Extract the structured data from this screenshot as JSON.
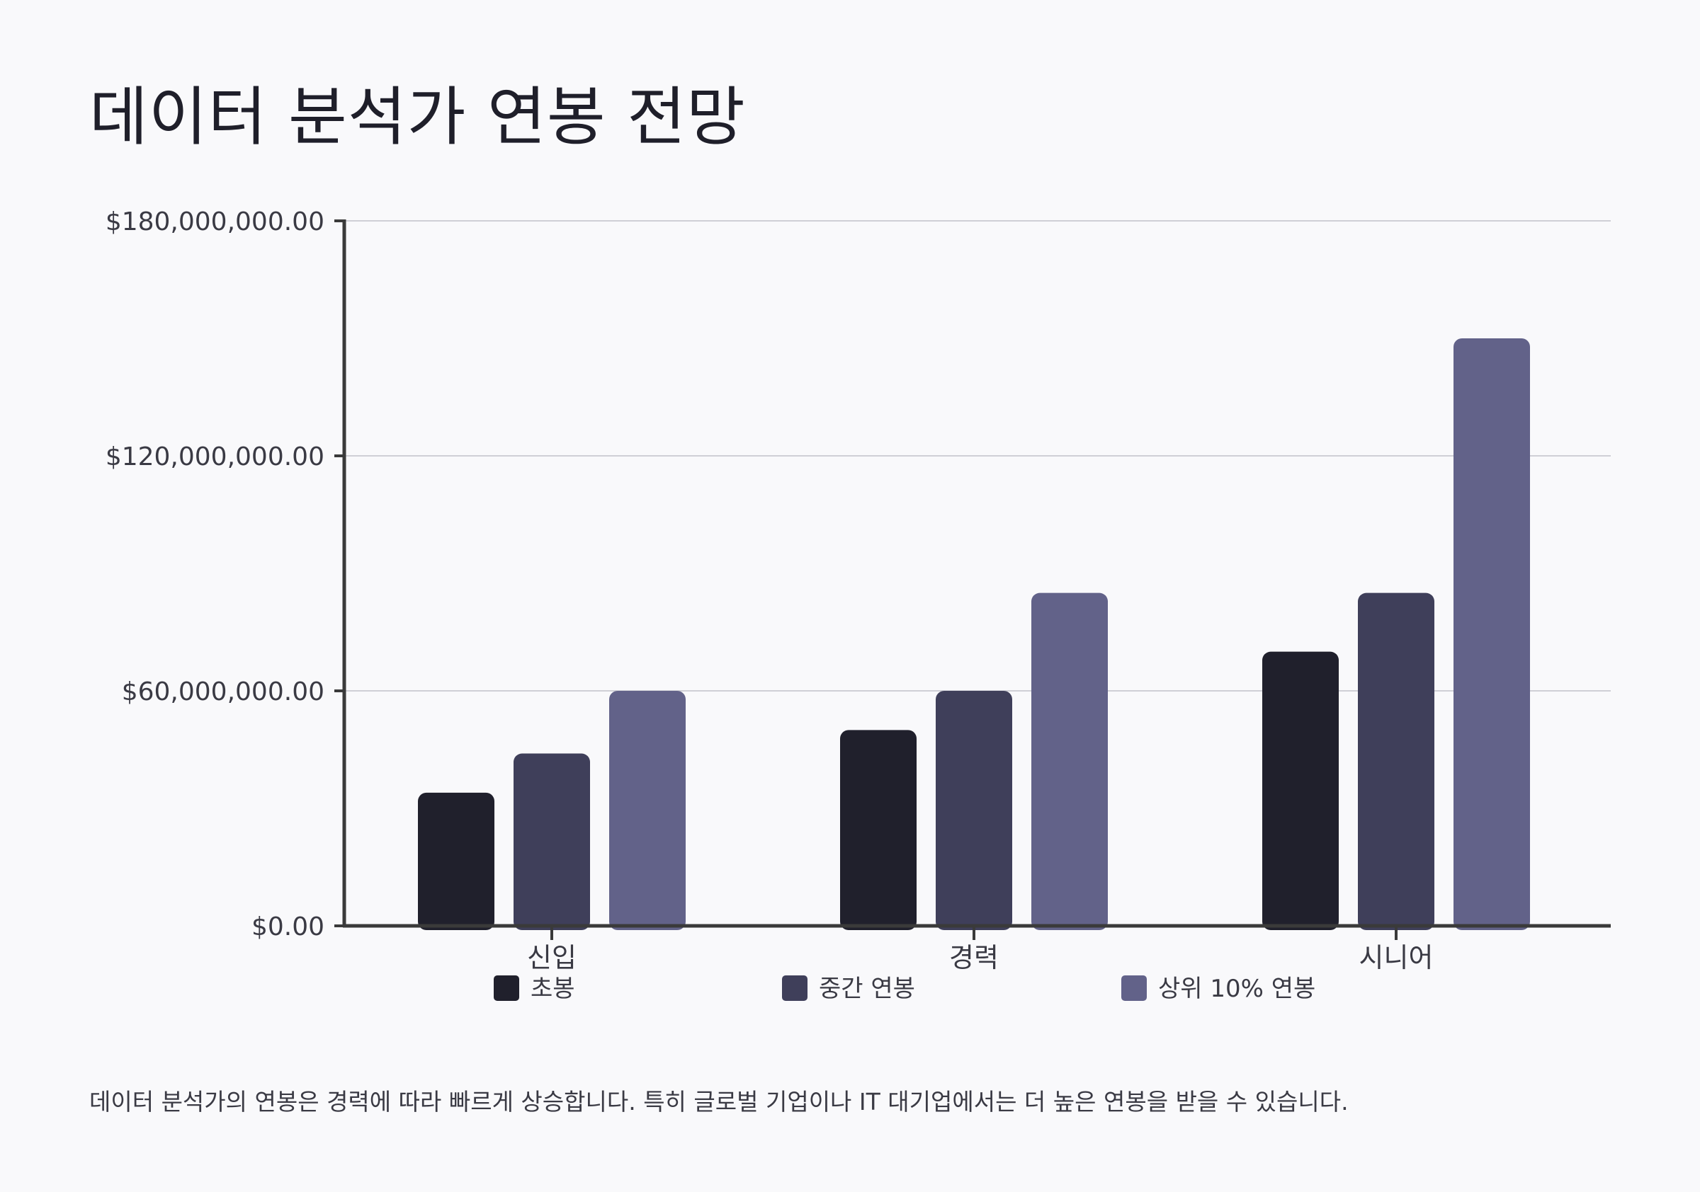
{
  "chart_data": {
    "type": "bar",
    "title": "데이터 분석가 연봉 전망",
    "xlabel": "",
    "ylabel": "",
    "categories": [
      "신입",
      "경력",
      "시니어"
    ],
    "series": [
      {
        "name": "초봉",
        "values": [
          34000000,
          50000000,
          70000000
        ],
        "color": "#20202c"
      },
      {
        "name": "중간 연봉",
        "values": [
          44000000,
          60000000,
          85000000
        ],
        "color": "#3f3f5a"
      },
      {
        "name": "상위 10% 연봉",
        "values": [
          60000000,
          85000000,
          150000000
        ],
        "color": "#626289"
      }
    ],
    "ylim": [
      0,
      180000000
    ],
    "yticks": [
      0,
      60000000,
      120000000,
      180000000
    ],
    "ytick_labels": [
      "$0.00",
      "$60,000,000.00",
      "$120,000,000.00",
      "$180,000,000.00"
    ],
    "grid": true,
    "legend_position": "bottom"
  },
  "footnote": "데이터 분석가의 연봉은 경력에 따라 빠르게 상승합니다. 특히 글로벌 기업이나 IT 대기업에서는 더 높은 연봉을 받을 수 있습니다."
}
